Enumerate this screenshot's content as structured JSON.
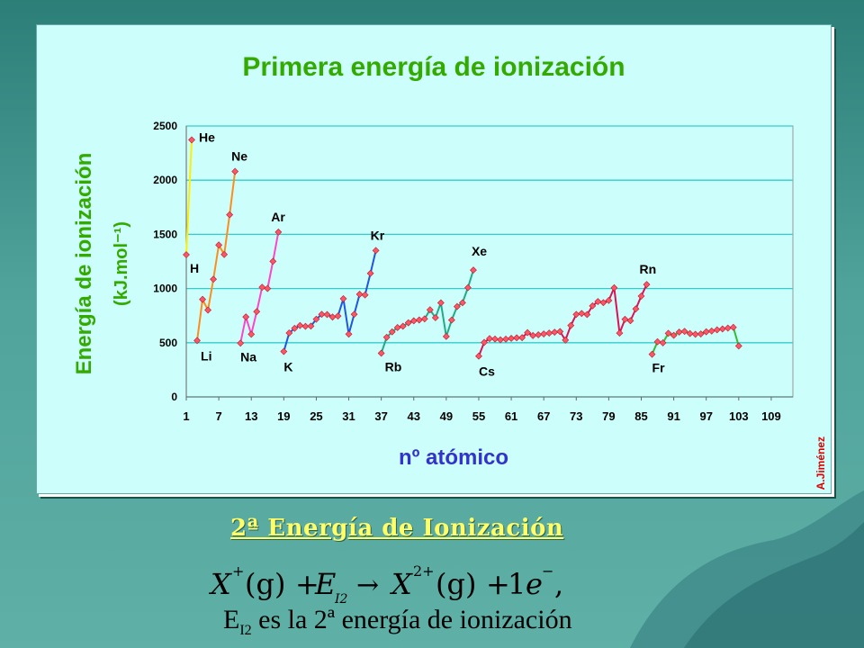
{
  "chart_data": {
    "type": "line",
    "title": "Primera energía de ionización",
    "xlabel": "nº atómico",
    "ylabel": "Energía de ionización",
    "ylabel_unit": "(kJ.mol⁻¹)",
    "ylim": [
      0,
      2500
    ],
    "yticks": [
      0,
      500,
      1000,
      1500,
      2000,
      2500
    ],
    "xlim": [
      1,
      113
    ],
    "xticks": [
      1,
      7,
      13,
      19,
      25,
      31,
      37,
      43,
      49,
      55,
      61,
      67,
      73,
      79,
      85,
      91,
      97,
      103,
      109
    ],
    "grid": "horizontal",
    "series": [
      {
        "color": "#ffee00",
        "x": [
          1,
          2
        ],
        "values": [
          1312,
          2372
        ]
      },
      {
        "color": "#ff8c1a",
        "x": [
          3,
          4,
          5,
          6,
          7,
          8,
          9,
          10
        ],
        "values": [
          520,
          900,
          801,
          1086,
          1402,
          1314,
          1681,
          2081
        ]
      },
      {
        "color": "#ff44cc",
        "x": [
          11,
          12,
          13,
          14,
          15,
          16,
          17,
          18
        ],
        "values": [
          496,
          738,
          578,
          787,
          1012,
          1000,
          1251,
          1521
        ]
      },
      {
        "color": "#2255dd",
        "x": [
          19,
          20,
          21,
          22,
          23,
          24,
          25,
          26,
          27,
          28,
          29,
          30,
          31,
          32,
          33,
          34,
          35,
          36
        ],
        "values": [
          419,
          590,
          633,
          659,
          651,
          653,
          717,
          762,
          760,
          737,
          746,
          906,
          579,
          762,
          947,
          941,
          1140,
          1351
        ]
      },
      {
        "color": "#22aa88",
        "x": [
          37,
          38,
          39,
          40,
          41,
          42,
          43,
          44,
          45,
          46,
          47,
          48,
          49,
          50,
          51,
          52,
          53,
          54
        ],
        "values": [
          403,
          550,
          600,
          640,
          652,
          684,
          702,
          710,
          720,
          804,
          731,
          868,
          558,
          709,
          834,
          869,
          1008,
          1170
        ]
      },
      {
        "color": "#dd1155",
        "x": [
          55,
          56,
          57,
          58,
          59,
          60,
          61,
          62,
          63,
          64,
          65,
          66,
          67,
          68,
          69,
          70,
          71,
          72,
          73,
          74,
          75,
          76,
          77,
          78,
          79,
          80,
          81,
          82,
          83,
          84,
          85,
          86
        ],
        "values": [
          376,
          503,
          538,
          534,
          527,
          533,
          540,
          545,
          547,
          593,
          566,
          573,
          581,
          589,
          597,
          603,
          524,
          659,
          761,
          770,
          760,
          840,
          880,
          870,
          890,
          1007,
          589,
          716,
          703,
          812,
          930,
          1037
        ]
      },
      {
        "color": "#33bb33",
        "x": [
          87,
          88,
          89,
          90,
          91,
          92,
          93,
          94,
          95,
          96,
          97,
          98,
          99,
          100,
          101,
          102,
          103
        ],
        "values": [
          393,
          509,
          499,
          587,
          568,
          598,
          605,
          585,
          578,
          581,
          601,
          608,
          619,
          627,
          635,
          642,
          470
        ]
      }
    ],
    "point_labels": [
      {
        "text": "H",
        "x": 1,
        "y": 1312
      },
      {
        "text": "He",
        "x": 2,
        "y": 2372
      },
      {
        "text": "Li",
        "x": 3,
        "y": 520
      },
      {
        "text": "Ne",
        "x": 10,
        "y": 2081
      },
      {
        "text": "Na",
        "x": 11,
        "y": 496
      },
      {
        "text": "Ar",
        "x": 18,
        "y": 1521
      },
      {
        "text": "K",
        "x": 19,
        "y": 419
      },
      {
        "text": "Kr",
        "x": 36,
        "y": 1351
      },
      {
        "text": "Rb",
        "x": 37,
        "y": 403
      },
      {
        "text": "Xe",
        "x": 54,
        "y": 1170
      },
      {
        "text": "Cs",
        "x": 55,
        "y": 376
      },
      {
        "text": "Rn",
        "x": 86,
        "y": 1037
      },
      {
        "text": "Fr",
        "x": 87,
        "y": 393
      }
    ],
    "colors": {
      "title": "#33aa00",
      "axis_label": "#33aa00",
      "xlabel": "#3333cc",
      "marker": "#ff5566",
      "grid": "#33cccc",
      "panel": "#ccfffb"
    }
  },
  "credit": "A.Jiménez",
  "subtitle": "2ª Energía de Ionización",
  "equation": {
    "X1": "X",
    "sup1": "+",
    "g1": "(g)",
    "plus1": "+",
    "E": "E",
    "Esub": "I2",
    "arrow": "→",
    "X2": "X",
    "sup2": "2+",
    "g2": "(g)",
    "plus2": "+",
    "one": "1",
    "e": "e",
    "esup": "−",
    "comma": ","
  },
  "note": {
    "E": "E",
    "sub": "I2",
    "text": " es la 2ª energía de ionización"
  }
}
